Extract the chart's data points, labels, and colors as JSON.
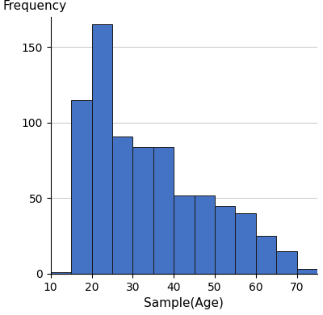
{
  "bar_edges": [
    10,
    15,
    20,
    25,
    30,
    35,
    40,
    45,
    50,
    55,
    60,
    65,
    70,
    75
  ],
  "bar_heights": [
    1,
    115,
    165,
    91,
    84,
    84,
    52,
    52,
    45,
    40,
    25,
    15,
    3
  ],
  "bar_color": "#4472C4",
  "bar_edgecolor": "#1a1a1a",
  "bar_linewidth": 0.7,
  "xlabel": "Sample(Age)",
  "ylabel": "Frequency",
  "xlim": [
    10,
    75
  ],
  "ylim": [
    0,
    170
  ],
  "xticks": [
    10,
    20,
    30,
    40,
    50,
    60,
    70
  ],
  "yticks": [
    0,
    50,
    100,
    150
  ],
  "grid_color": "#cccccc",
  "grid_linewidth": 0.8,
  "background_color": "#ffffff",
  "xlabel_fontsize": 11,
  "ylabel_fontsize": 11,
  "tick_fontsize": 10,
  "figsize": [
    4.0,
    3.9
  ]
}
